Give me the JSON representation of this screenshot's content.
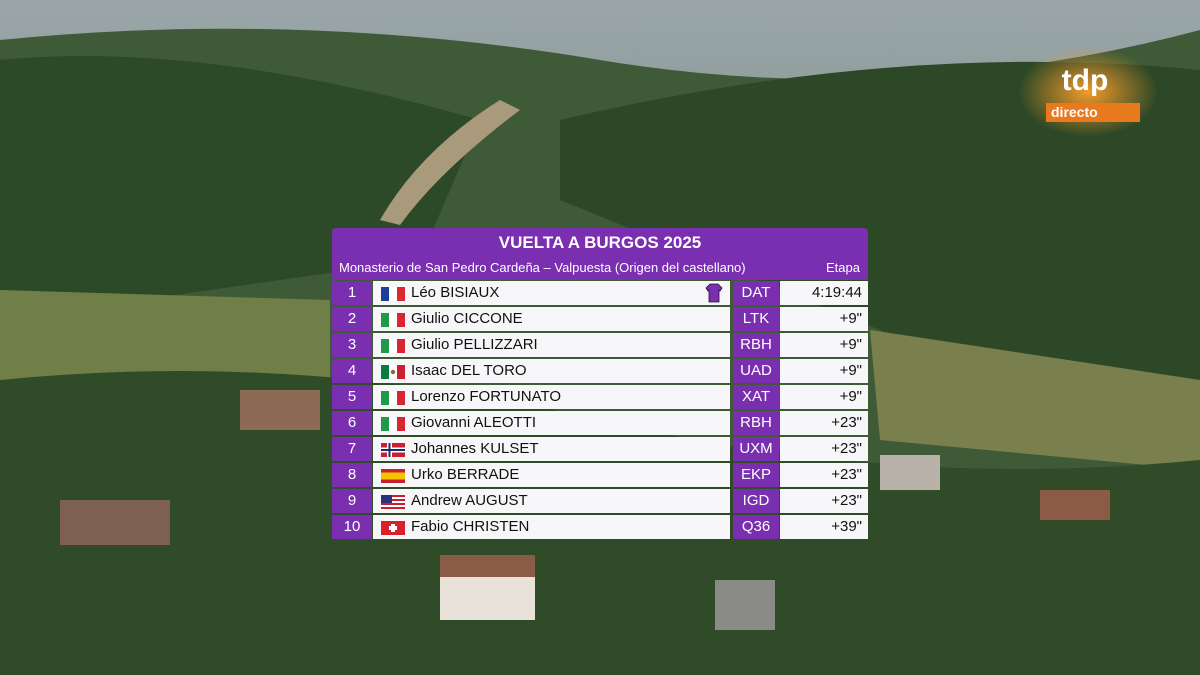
{
  "logo": {
    "brand": "tdp",
    "tag": "directo"
  },
  "table": {
    "title": "VUELTA A BURGOS 2025",
    "subtitle": "Monasterio de San Pedro Cardeña – Valpuesta (Origen del castellano)",
    "column_header": "Etapa",
    "rows": [
      [
        1,
        "Léo BISIAUX",
        "DAT",
        "4:19:44"
      ],
      [
        2,
        "Giulio CICCONE",
        "LTK",
        "+9\""
      ],
      [
        3,
        "Giulio PELLIZZARI",
        "RBH",
        "+9\""
      ],
      [
        4,
        "Isaac DEL TORO",
        "UAD",
        "+9\""
      ],
      [
        5,
        "Lorenzo FORTUNATO",
        "XAT",
        "+9\""
      ],
      [
        6,
        "Giovanni ALEOTTI",
        "RBH",
        "+23\""
      ],
      [
        7,
        "Johannes KULSET",
        "UXM",
        "+23\""
      ],
      [
        8,
        "Urko BERRADE",
        "EKP",
        "+23\""
      ],
      [
        9,
        "Andrew AUGUST",
        "IGD",
        "+23\""
      ],
      [
        10,
        "Fabio CHRISTEN",
        "Q36",
        "+39\""
      ]
    ]
  }
}
